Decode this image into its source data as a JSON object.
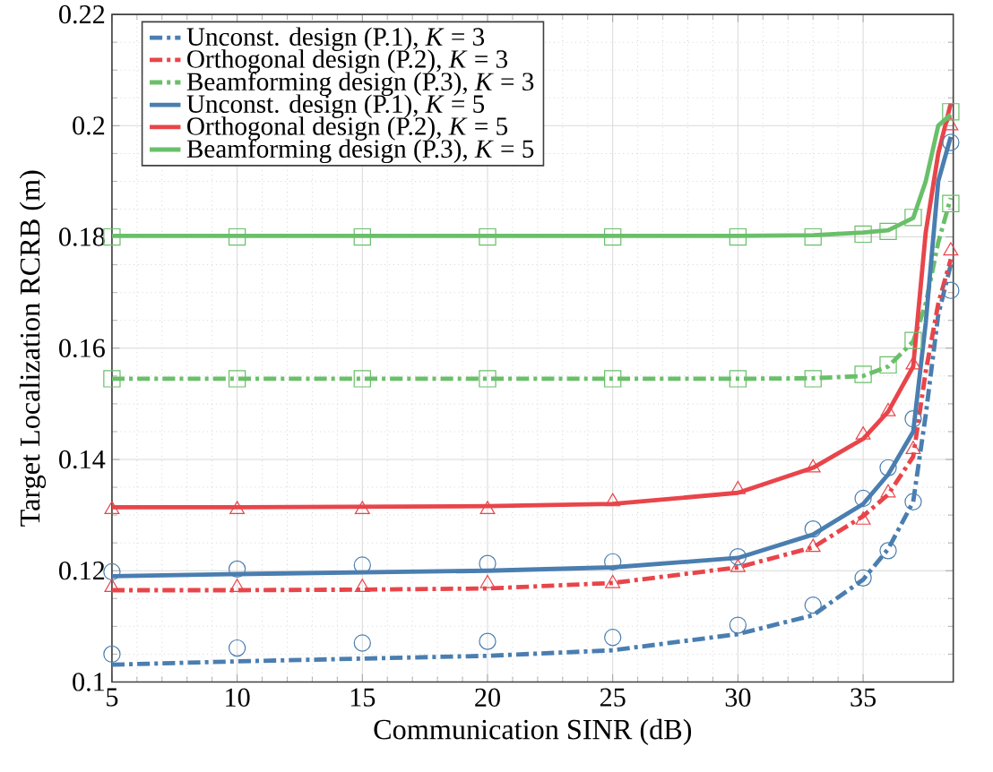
{
  "chart_data": {
    "type": "line",
    "xlabel": "Communication SINR (dB)",
    "ylabel": "Target Localization RCRB (m)",
    "xlim": [
      5,
      38.6
    ],
    "ylim": [
      0.1,
      0.22
    ],
    "xticks": [
      5,
      10,
      15,
      20,
      25,
      30,
      35
    ],
    "yticks": [
      0.1,
      0.12,
      0.14,
      0.16,
      0.18,
      0.2,
      0.22
    ],
    "grid": true,
    "legend": "top left",
    "series": [
      {
        "name": "Unconst. design (P.1), *K* = 3",
        "color": "#4a7eb0",
        "line_style": "dashed",
        "marker": "none",
        "x": [
          5,
          10,
          15,
          20,
          25,
          30,
          33,
          35,
          36,
          37,
          37.5,
          38,
          38.5
        ],
        "values": [
          0.1031,
          0.1037,
          0.1042,
          0.1047,
          0.1057,
          0.1086,
          0.112,
          0.1184,
          0.1239,
          0.1324,
          0.148,
          0.166,
          0.175
        ]
      },
      {
        "name": "Orthogonal design (P.2), *K* = 3",
        "color": "#e8454a",
        "line_style": "dashed",
        "marker": "none",
        "x": [
          5,
          10,
          15,
          20,
          25,
          30,
          33,
          35,
          36,
          37,
          37.5,
          38,
          38.5
        ],
        "values": [
          0.1165,
          0.1165,
          0.1166,
          0.1168,
          0.1178,
          0.1206,
          0.1242,
          0.1298,
          0.1337,
          0.1405,
          0.1558,
          0.168,
          0.176
        ]
      },
      {
        "name": "Beamforming design (P.3), *K* = 3",
        "color": "#6abf69",
        "line_style": "dashed",
        "marker": "none",
        "x": [
          5,
          10,
          15,
          20,
          25,
          30,
          33,
          35,
          36,
          37,
          37.5,
          38,
          38.5
        ],
        "values": [
          0.1545,
          0.1545,
          0.1545,
          0.1545,
          0.1545,
          0.1545,
          0.1546,
          0.155,
          0.1567,
          0.1612,
          0.168,
          0.179,
          0.187
        ]
      },
      {
        "name": "Unconst. design (P.1), *K* = 5",
        "color": "#4a7eb0",
        "line_style": "solid",
        "marker": "none",
        "x": [
          5,
          10,
          15,
          20,
          25,
          30,
          33,
          35,
          36,
          37,
          37.5,
          38,
          38.5
        ],
        "values": [
          0.119,
          0.1194,
          0.1197,
          0.12,
          0.1206,
          0.1223,
          0.1265,
          0.132,
          0.1373,
          0.145,
          0.1645,
          0.19,
          0.198
        ]
      },
      {
        "name": "Orthogonal design (P.2), *K* = 5",
        "color": "#e8454a",
        "line_style": "solid",
        "marker": "none",
        "x": [
          5,
          10,
          15,
          20,
          25,
          30,
          33,
          35,
          36,
          37,
          37.5,
          38,
          38.5
        ],
        "values": [
          0.1314,
          0.1314,
          0.1315,
          0.1316,
          0.132,
          0.134,
          0.1385,
          0.1437,
          0.1486,
          0.1567,
          0.1808,
          0.195,
          0.204
        ]
      },
      {
        "name": "Beamforming design (P.3), *K* = 5",
        "color": "#6abf69",
        "line_style": "solid",
        "marker": "none",
        "x": [
          5,
          10,
          15,
          20,
          25,
          30,
          33,
          35,
          36,
          37,
          37.5,
          38,
          38.5
        ],
        "values": [
          0.1802,
          0.1802,
          0.1802,
          0.1802,
          0.1802,
          0.1802,
          0.1803,
          0.1808,
          0.1812,
          0.1834,
          0.19,
          0.2,
          0.202
        ]
      },
      {
        "type": "scatter",
        "color": "#4a7eb0",
        "marker": "circle",
        "x": [
          5,
          10,
          15,
          20,
          25,
          30,
          33,
          35,
          36,
          37,
          38.5
        ],
        "values": [
          0.105,
          0.1061,
          0.107,
          0.1073,
          0.108,
          0.1102,
          0.1138,
          0.1187,
          0.1236,
          0.1324,
          0.1704
        ]
      },
      {
        "type": "scatter",
        "color": "#e8454a",
        "marker": "triangle",
        "x": [
          5,
          10,
          15,
          20,
          25,
          30,
          33,
          35,
          36,
          37,
          38.5
        ],
        "values": [
          0.117,
          0.117,
          0.117,
          0.1177,
          0.1177,
          0.1206,
          0.1242,
          0.1291,
          0.134,
          0.1418,
          0.1775
        ]
      },
      {
        "type": "scatter",
        "color": "#6abf69",
        "marker": "square",
        "x": [
          5,
          10,
          15,
          20,
          25,
          30,
          33,
          35,
          36,
          37,
          38.5
        ],
        "values": [
          0.1545,
          0.1545,
          0.1545,
          0.1545,
          0.1545,
          0.1545,
          0.1545,
          0.1553,
          0.157,
          0.1614,
          0.186
        ]
      },
      {
        "type": "scatter",
        "color": "#4a7eb0",
        "marker": "circle",
        "x": [
          5,
          10,
          15,
          20,
          25,
          30,
          33,
          35,
          36,
          37,
          38.5
        ],
        "values": [
          0.1198,
          0.1203,
          0.121,
          0.1213,
          0.1216,
          0.1225,
          0.1275,
          0.133,
          0.1385,
          0.1473,
          0.197
        ]
      },
      {
        "type": "scatter",
        "color": "#e8454a",
        "marker": "triangle",
        "x": [
          5,
          10,
          15,
          20,
          25,
          30,
          33,
          35,
          36,
          37,
          38.5
        ],
        "values": [
          0.131,
          0.131,
          0.131,
          0.131,
          0.1324,
          0.1346,
          0.1385,
          0.1444,
          0.1486,
          0.157,
          0.2
        ]
      },
      {
        "type": "scatter",
        "color": "#6abf69",
        "marker": "square",
        "x": [
          5,
          10,
          15,
          20,
          25,
          30,
          33,
          35,
          36,
          37,
          38.5
        ],
        "values": [
          0.18,
          0.18,
          0.18,
          0.18,
          0.18,
          0.18,
          0.18,
          0.1805,
          0.181,
          0.1835,
          0.2025
        ]
      }
    ]
  }
}
